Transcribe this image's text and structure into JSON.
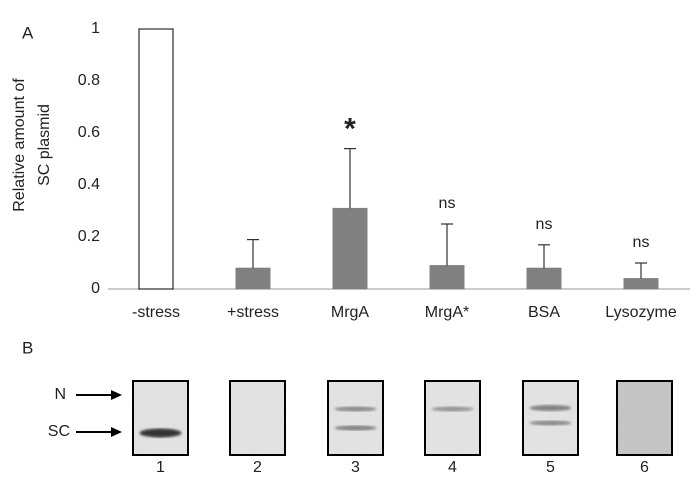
{
  "chart_data": {
    "type": "bar",
    "panel_labels": [
      "A",
      "B"
    ],
    "ylabel": [
      "Relative  amount of",
      "SC plasmid"
    ],
    "categories": [
      "-stress",
      "+stress",
      "MrgA",
      "MrgA*",
      "BSA",
      "Lysozyme"
    ],
    "values": [
      1,
      0.08,
      0.31,
      0.09,
      0.08,
      0.04
    ],
    "errors": [
      null,
      0.11,
      0.23,
      0.16,
      0.09,
      0.06
    ],
    "annotations": [
      null,
      null,
      "*",
      "ns",
      "ns",
      "ns"
    ],
    "colors": [
      "#ffffff",
      "#808080",
      "#808080",
      "#808080",
      "#808080",
      "#808080"
    ],
    "ylim": [
      0,
      1
    ],
    "yticks": [
      0,
      0.2,
      0.4,
      0.6,
      0.8,
      1
    ],
    "grid": false,
    "gel": {
      "markers": [
        "N",
        "SC"
      ],
      "lanes": [
        "1",
        "2",
        "3",
        "4",
        "5",
        "6"
      ]
    }
  }
}
